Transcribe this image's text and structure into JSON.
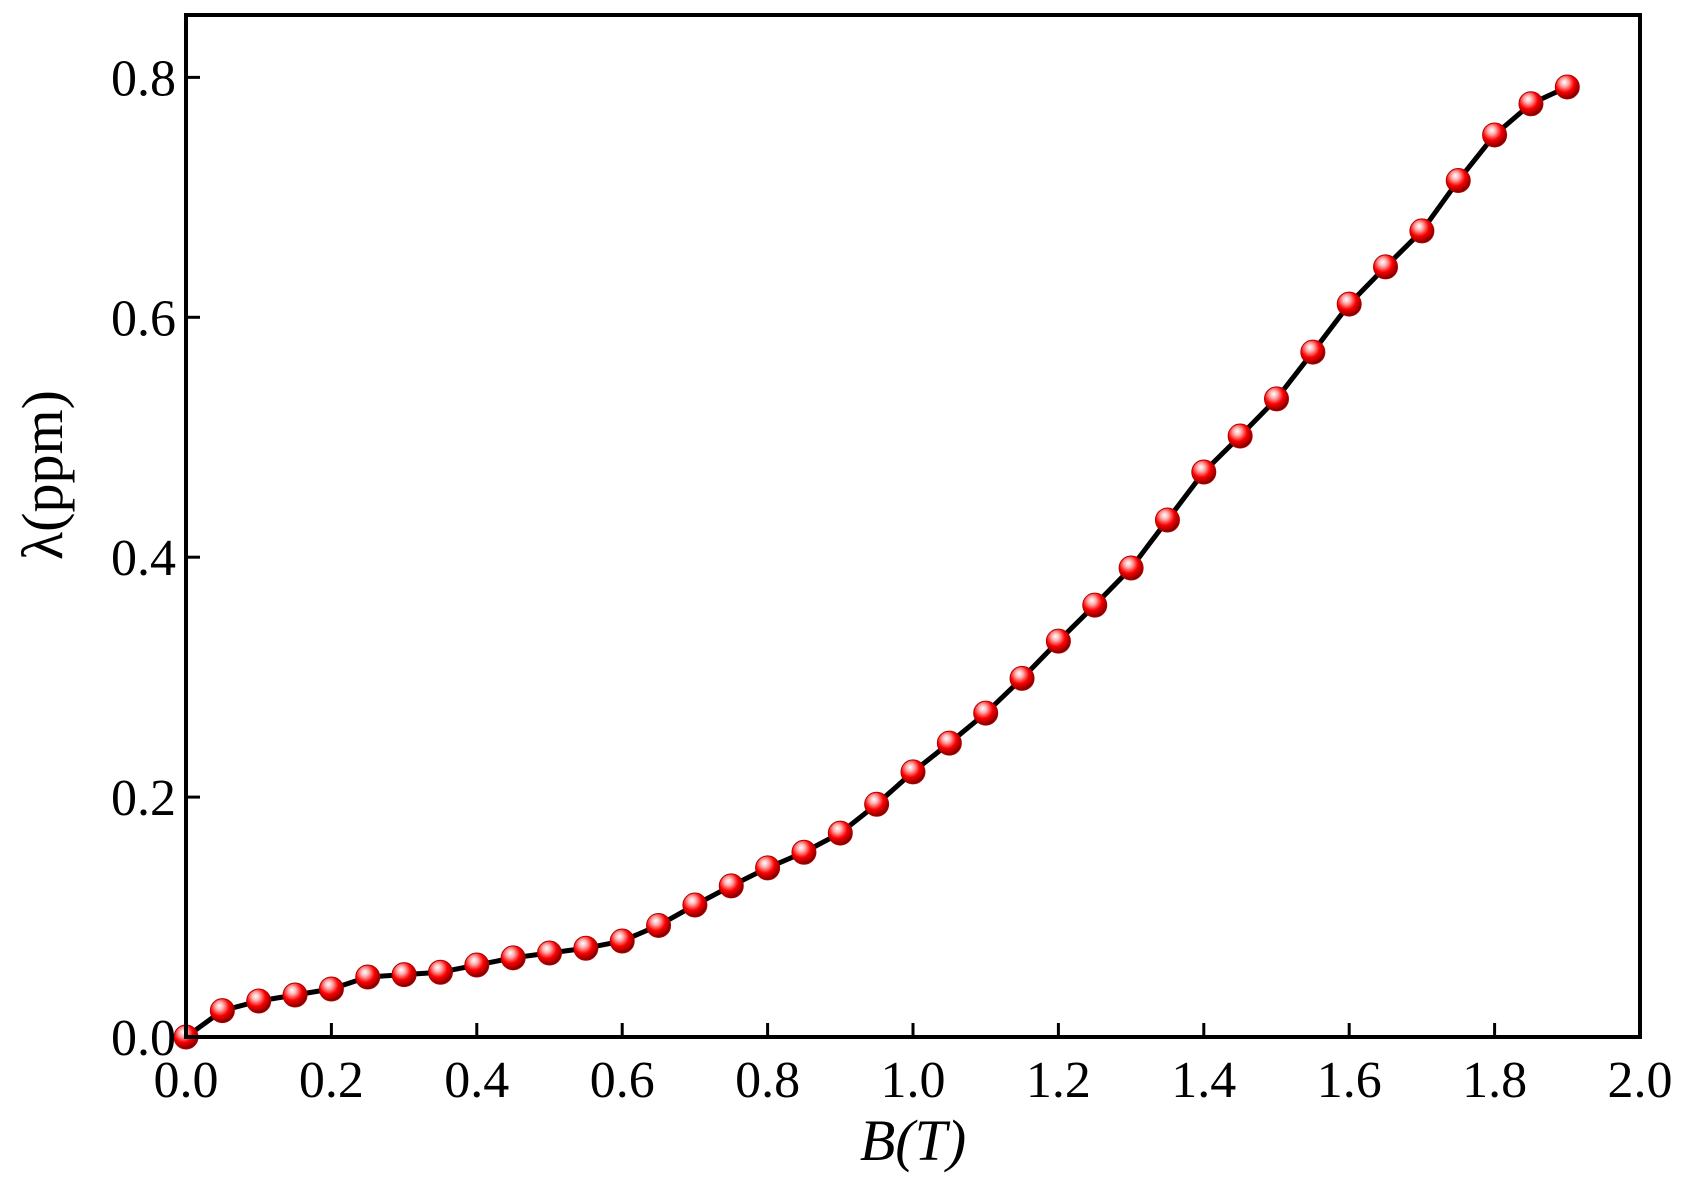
{
  "chart_data": {
    "type": "line",
    "x_label": "B(T)",
    "y_label": "λ(ppm)",
    "xlim": [
      0,
      2.0
    ],
    "ylim": [
      0,
      0.852
    ],
    "xticks": [
      {
        "value": 0,
        "label": "0.0"
      },
      {
        "value": 0.2,
        "label": "0.2"
      },
      {
        "value": 0.4,
        "label": "0.4"
      },
      {
        "value": 0.6,
        "label": "0.6"
      },
      {
        "value": 0.8,
        "label": "0.8"
      },
      {
        "value": 1.0,
        "label": "1.0"
      },
      {
        "value": 1.2,
        "label": "1.2"
      },
      {
        "value": 1.4,
        "label": "1.4"
      },
      {
        "value": 1.6,
        "label": "1.6"
      },
      {
        "value": 1.8,
        "label": "1.8"
      },
      {
        "value": 2.0,
        "label": "2.0"
      }
    ],
    "yticks": [
      {
        "value": 0,
        "label": "0.0"
      },
      {
        "value": 0.2,
        "label": "0.2"
      },
      {
        "value": 0.4,
        "label": "0.4"
      },
      {
        "value": 0.6,
        "label": "0.6"
      },
      {
        "value": 0.8,
        "label": "0.8"
      }
    ],
    "x": [
      0,
      0.05,
      0.1,
      0.15,
      0.2,
      0.25,
      0.3,
      0.35,
      0.4,
      0.45,
      0.5,
      0.55,
      0.6,
      0.65,
      0.7,
      0.75,
      0.8,
      0.85,
      0.9,
      0.95,
      1.0,
      1.05,
      1.1,
      1.15,
      1.2,
      1.25,
      1.3,
      1.35,
      1.4,
      1.45,
      1.5,
      1.55,
      1.6,
      1.65,
      1.7,
      1.75,
      1.8,
      1.85,
      1.9
    ],
    "values": [
      0,
      0.022,
      0.03,
      0.035,
      0.04,
      0.05,
      0.052,
      0.054,
      0.06,
      0.066,
      0.07,
      0.074,
      0.08,
      0.093,
      0.11,
      0.126,
      0.141,
      0.154,
      0.17,
      0.194,
      0.221,
      0.245,
      0.27,
      0.299,
      0.33,
      0.36,
      0.391,
      0.431,
      0.471,
      0.501,
      0.532,
      0.571,
      0.611,
      0.642,
      0.672,
      0.714,
      0.752,
      0.778,
      0.792
    ],
    "color": "#ff0000",
    "line_color": "#000000",
    "grid": false
  }
}
